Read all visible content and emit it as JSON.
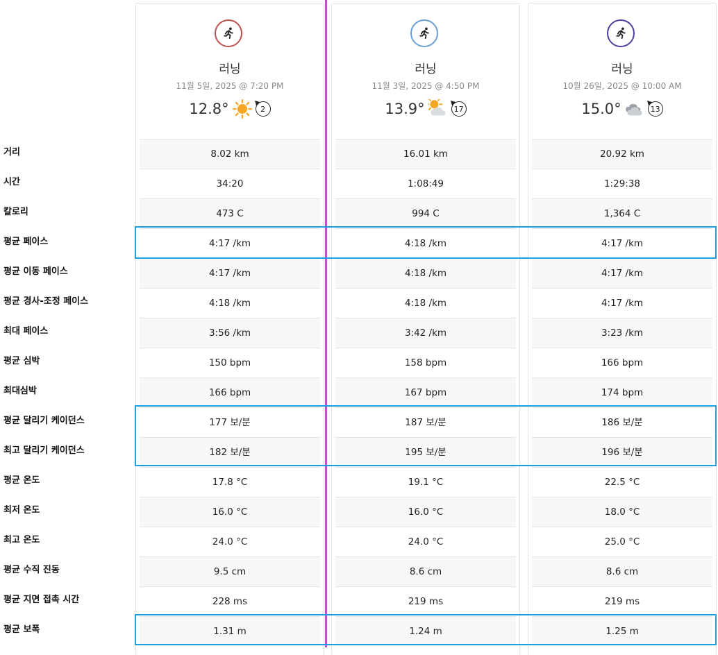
{
  "rows": [
    "거리",
    "시간",
    "칼로리",
    "평균 페이스",
    "평균 이동 페이스",
    "평균 경사-조정 페이스",
    "최대 페이스",
    "평균 심박",
    "최대심박",
    "평균 달리기 케이던스",
    "최고 달리기 케이던스",
    "평균 온도",
    "최저 온도",
    "최고 온도",
    "평균 수직 진동",
    "평균 지면 접촉 시간",
    "평균 보폭"
  ],
  "activities": [
    {
      "type": "러닝",
      "date": "11월 5일, 2025 @ 7:20 PM",
      "temperature": "12.8°",
      "weather_icon": "sun-icon",
      "wind": "2",
      "icon_color": "#c0504d",
      "values": [
        "8.02 km",
        "34:20",
        "473 C",
        "4:17 /km",
        "4:17 /km",
        "4:18 /km",
        "3:56 /km",
        "150 bpm",
        "166 bpm",
        "177 보/분",
        "182 보/분",
        "17.8 °C",
        "16.0 °C",
        "24.0 °C",
        "9.5 cm",
        "228 ms",
        "1.31 m"
      ]
    },
    {
      "type": "러닝",
      "date": "11월 3일, 2025 @ 4:50 PM",
      "temperature": "13.9°",
      "weather_icon": "partly-cloudy-icon",
      "wind": "17",
      "icon_color": "#6a9fd4",
      "values": [
        "16.01 km",
        "1:08:49",
        "994 C",
        "4:18 /km",
        "4:18 /km",
        "4:18 /km",
        "3:42 /km",
        "158 bpm",
        "167 bpm",
        "187 보/분",
        "195 보/분",
        "19.1 °C",
        "16.0 °C",
        "24.0 °C",
        "8.6 cm",
        "219 ms",
        "1.24 m"
      ]
    },
    {
      "type": "러닝",
      "date": "10월 26일, 2025 @ 10:00 AM",
      "temperature": "15.0°",
      "weather_icon": "cloudy-icon",
      "wind": "13",
      "icon_color": "#4b3fa0",
      "values": [
        "20.92 km",
        "1:29:38",
        "1,364 C",
        "4:17 /km",
        "4:17 /km",
        "4:17 /km",
        "3:23 /km",
        "166 bpm",
        "174 bpm",
        "186 보/분",
        "196 보/분",
        "22.5 °C",
        "18.0 °C",
        "25.0 °C",
        "8.6 cm",
        "219 ms",
        "1.25 m"
      ]
    }
  ],
  "colors": {
    "highlight": "#1ba1e2",
    "divider": "#c84ad4"
  }
}
